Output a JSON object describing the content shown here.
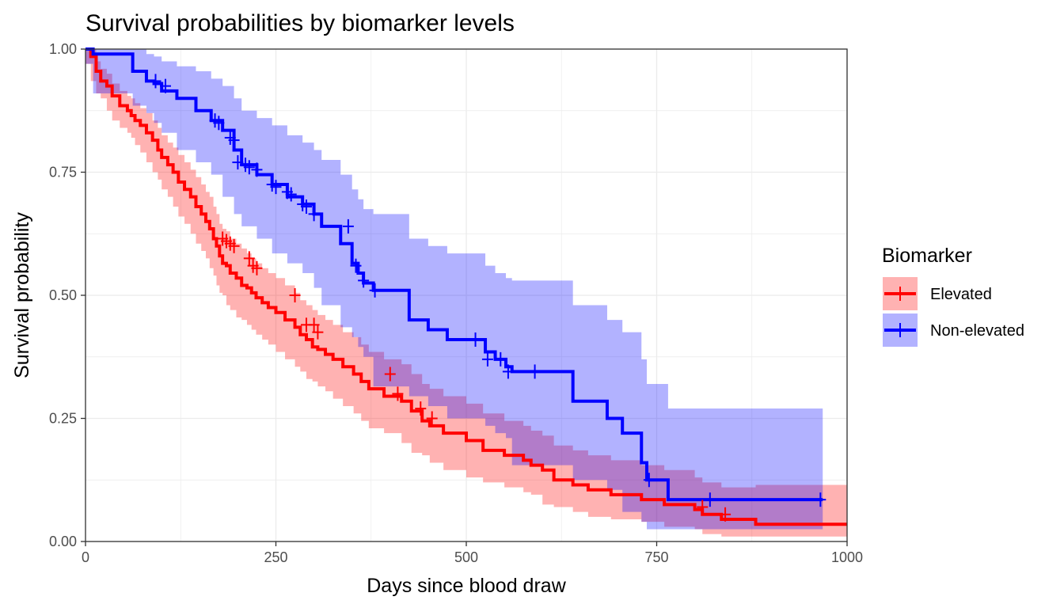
{
  "chart_data": {
    "type": "line",
    "subtype": "kaplan-meier step curves with confidence bands and censor marks",
    "title": "Survival probabilities by biomarker levels",
    "xlabel": "Days since blood draw",
    "ylabel": "Survival probability",
    "xlim": [
      0,
      1000
    ],
    "ylim": [
      0,
      1
    ],
    "x_ticks": [
      0,
      250,
      500,
      750,
      1000
    ],
    "x_tick_labels": [
      "0",
      "250",
      "500",
      "750",
      "1000"
    ],
    "y_ticks": [
      0,
      0.25,
      0.5,
      0.75,
      1
    ],
    "y_tick_labels": [
      "0.00",
      "0.25",
      "0.50",
      "0.75",
      "1.00"
    ],
    "grid": true,
    "legend": {
      "title": "Biomarker",
      "position": "right"
    },
    "series": [
      {
        "name": "Elevated",
        "color": "#ff0000",
        "band_color": "#ff0000",
        "step_x": [
          0,
          7,
          14,
          20,
          28,
          35,
          45,
          55,
          60,
          65,
          72,
          80,
          88,
          95,
          100,
          108,
          115,
          122,
          130,
          138,
          145,
          152,
          158,
          163,
          168,
          172,
          176,
          180,
          185,
          190,
          198,
          205,
          212,
          218,
          224,
          232,
          240,
          250,
          262,
          275,
          282,
          290,
          298,
          305,
          315,
          325,
          338,
          352,
          362,
          372,
          392,
          415,
          428,
          442,
          452,
          470,
          500,
          522,
          550,
          575,
          585,
          600,
          615,
          640,
          660,
          690,
          730,
          760,
          800,
          810,
          835,
          880,
          1000
        ],
        "step_y": [
          1.0,
          0.985,
          0.955,
          0.935,
          0.925,
          0.905,
          0.885,
          0.875,
          0.865,
          0.855,
          0.845,
          0.83,
          0.815,
          0.795,
          0.78,
          0.765,
          0.75,
          0.73,
          0.715,
          0.7,
          0.68,
          0.665,
          0.65,
          0.635,
          0.615,
          0.6,
          0.58,
          0.565,
          0.56,
          0.545,
          0.535,
          0.52,
          0.515,
          0.505,
          0.495,
          0.485,
          0.475,
          0.465,
          0.45,
          0.435,
          0.42,
          0.41,
          0.395,
          0.39,
          0.38,
          0.37,
          0.355,
          0.34,
          0.325,
          0.31,
          0.295,
          0.285,
          0.265,
          0.245,
          0.235,
          0.22,
          0.205,
          0.185,
          0.175,
          0.165,
          0.155,
          0.145,
          0.125,
          0.115,
          0.105,
          0.095,
          0.085,
          0.075,
          0.065,
          0.055,
          0.045,
          0.035,
          0.035
        ],
        "ci_lower": [
          1.0,
          0.97,
          0.935,
          0.91,
          0.9,
          0.875,
          0.855,
          0.84,
          0.83,
          0.82,
          0.805,
          0.79,
          0.77,
          0.75,
          0.735,
          0.715,
          0.7,
          0.68,
          0.66,
          0.645,
          0.625,
          0.605,
          0.59,
          0.575,
          0.555,
          0.54,
          0.52,
          0.505,
          0.5,
          0.48,
          0.47,
          0.455,
          0.45,
          0.44,
          0.43,
          0.42,
          0.41,
          0.4,
          0.385,
          0.37,
          0.355,
          0.345,
          0.33,
          0.325,
          0.315,
          0.305,
          0.29,
          0.275,
          0.26,
          0.245,
          0.23,
          0.22,
          0.2,
          0.18,
          0.175,
          0.16,
          0.145,
          0.13,
          0.12,
          0.11,
          0.1,
          0.095,
          0.075,
          0.07,
          0.06,
          0.05,
          0.045,
          0.04,
          0.03,
          0.025,
          0.015,
          0.01,
          0.01
        ],
        "ci_upper": [
          1.0,
          1.0,
          0.975,
          0.96,
          0.95,
          0.93,
          0.915,
          0.905,
          0.9,
          0.89,
          0.88,
          0.87,
          0.855,
          0.84,
          0.825,
          0.81,
          0.8,
          0.785,
          0.77,
          0.755,
          0.74,
          0.725,
          0.71,
          0.7,
          0.68,
          0.665,
          0.645,
          0.635,
          0.63,
          0.615,
          0.605,
          0.595,
          0.585,
          0.575,
          0.565,
          0.555,
          0.545,
          0.535,
          0.52,
          0.505,
          0.49,
          0.48,
          0.47,
          0.46,
          0.45,
          0.44,
          0.425,
          0.415,
          0.4,
          0.385,
          0.37,
          0.36,
          0.34,
          0.32,
          0.31,
          0.295,
          0.28,
          0.26,
          0.245,
          0.235,
          0.225,
          0.215,
          0.195,
          0.185,
          0.175,
          0.165,
          0.155,
          0.145,
          0.13,
          0.12,
          0.11,
          0.115,
          0.115
        ],
        "censor_x": [
          180,
          185,
          190,
          195,
          215,
          220,
          225,
          275,
          290,
          300,
          305,
          400,
          410,
          440,
          455,
          810,
          840
        ],
        "censor_y": [
          0.615,
          0.61,
          0.605,
          0.6,
          0.575,
          0.56,
          0.555,
          0.5,
          0.44,
          0.44,
          0.425,
          0.34,
          0.3,
          0.27,
          0.25,
          0.07,
          0.055
        ]
      },
      {
        "name": "Non-elevated",
        "color": "#0000ff",
        "band_color": "#0000ff",
        "step_x": [
          0,
          10,
          62,
          80,
          90,
          100,
          120,
          145,
          165,
          180,
          195,
          205,
          225,
          245,
          265,
          285,
          300,
          310,
          335,
          350,
          358,
          365,
          378,
          425,
          450,
          475,
          525,
          538,
          552,
          560,
          640,
          685,
          705,
          730,
          737,
          765,
          968
        ],
        "step_y": [
          1.0,
          0.99,
          0.955,
          0.935,
          0.93,
          0.915,
          0.9,
          0.875,
          0.855,
          0.835,
          0.795,
          0.765,
          0.745,
          0.725,
          0.7,
          0.685,
          0.665,
          0.64,
          0.605,
          0.565,
          0.545,
          0.525,
          0.51,
          0.45,
          0.43,
          0.41,
          0.385,
          0.37,
          0.355,
          0.345,
          0.285,
          0.25,
          0.22,
          0.16,
          0.125,
          0.085,
          0.085
        ],
        "ci_lower": [
          1.0,
          0.97,
          0.91,
          0.885,
          0.87,
          0.85,
          0.83,
          0.795,
          0.77,
          0.745,
          0.7,
          0.665,
          0.64,
          0.615,
          0.585,
          0.565,
          0.545,
          0.515,
          0.48,
          0.435,
          0.415,
          0.395,
          0.375,
          0.315,
          0.295,
          0.275,
          0.25,
          0.235,
          0.22,
          0.21,
          0.155,
          0.125,
          0.105,
          0.06,
          0.04,
          0.025,
          0.025
        ],
        "ci_upper": [
          1.0,
          1.0,
          1.0,
          0.99,
          0.985,
          0.975,
          0.965,
          0.955,
          0.94,
          0.925,
          0.9,
          0.875,
          0.86,
          0.845,
          0.825,
          0.81,
          0.795,
          0.775,
          0.745,
          0.715,
          0.695,
          0.675,
          0.665,
          0.615,
          0.6,
          0.585,
          0.56,
          0.545,
          0.535,
          0.53,
          0.48,
          0.45,
          0.425,
          0.37,
          0.32,
          0.27,
          0.27
        ],
        "censor_x": [
          92,
          105,
          170,
          175,
          190,
          195,
          200,
          210,
          215,
          225,
          245,
          250,
          265,
          270,
          285,
          290,
          300,
          345,
          355,
          365,
          380,
          512,
          528,
          545,
          555,
          590,
          740,
          820,
          965
        ],
        "censor_y": [
          0.935,
          0.925,
          0.855,
          0.85,
          0.82,
          0.815,
          0.77,
          0.765,
          0.76,
          0.755,
          0.725,
          0.72,
          0.71,
          0.705,
          0.685,
          0.68,
          0.665,
          0.64,
          0.56,
          0.53,
          0.51,
          0.41,
          0.37,
          0.37,
          0.345,
          0.345,
          0.125,
          0.085,
          0.085
        ]
      }
    ]
  }
}
